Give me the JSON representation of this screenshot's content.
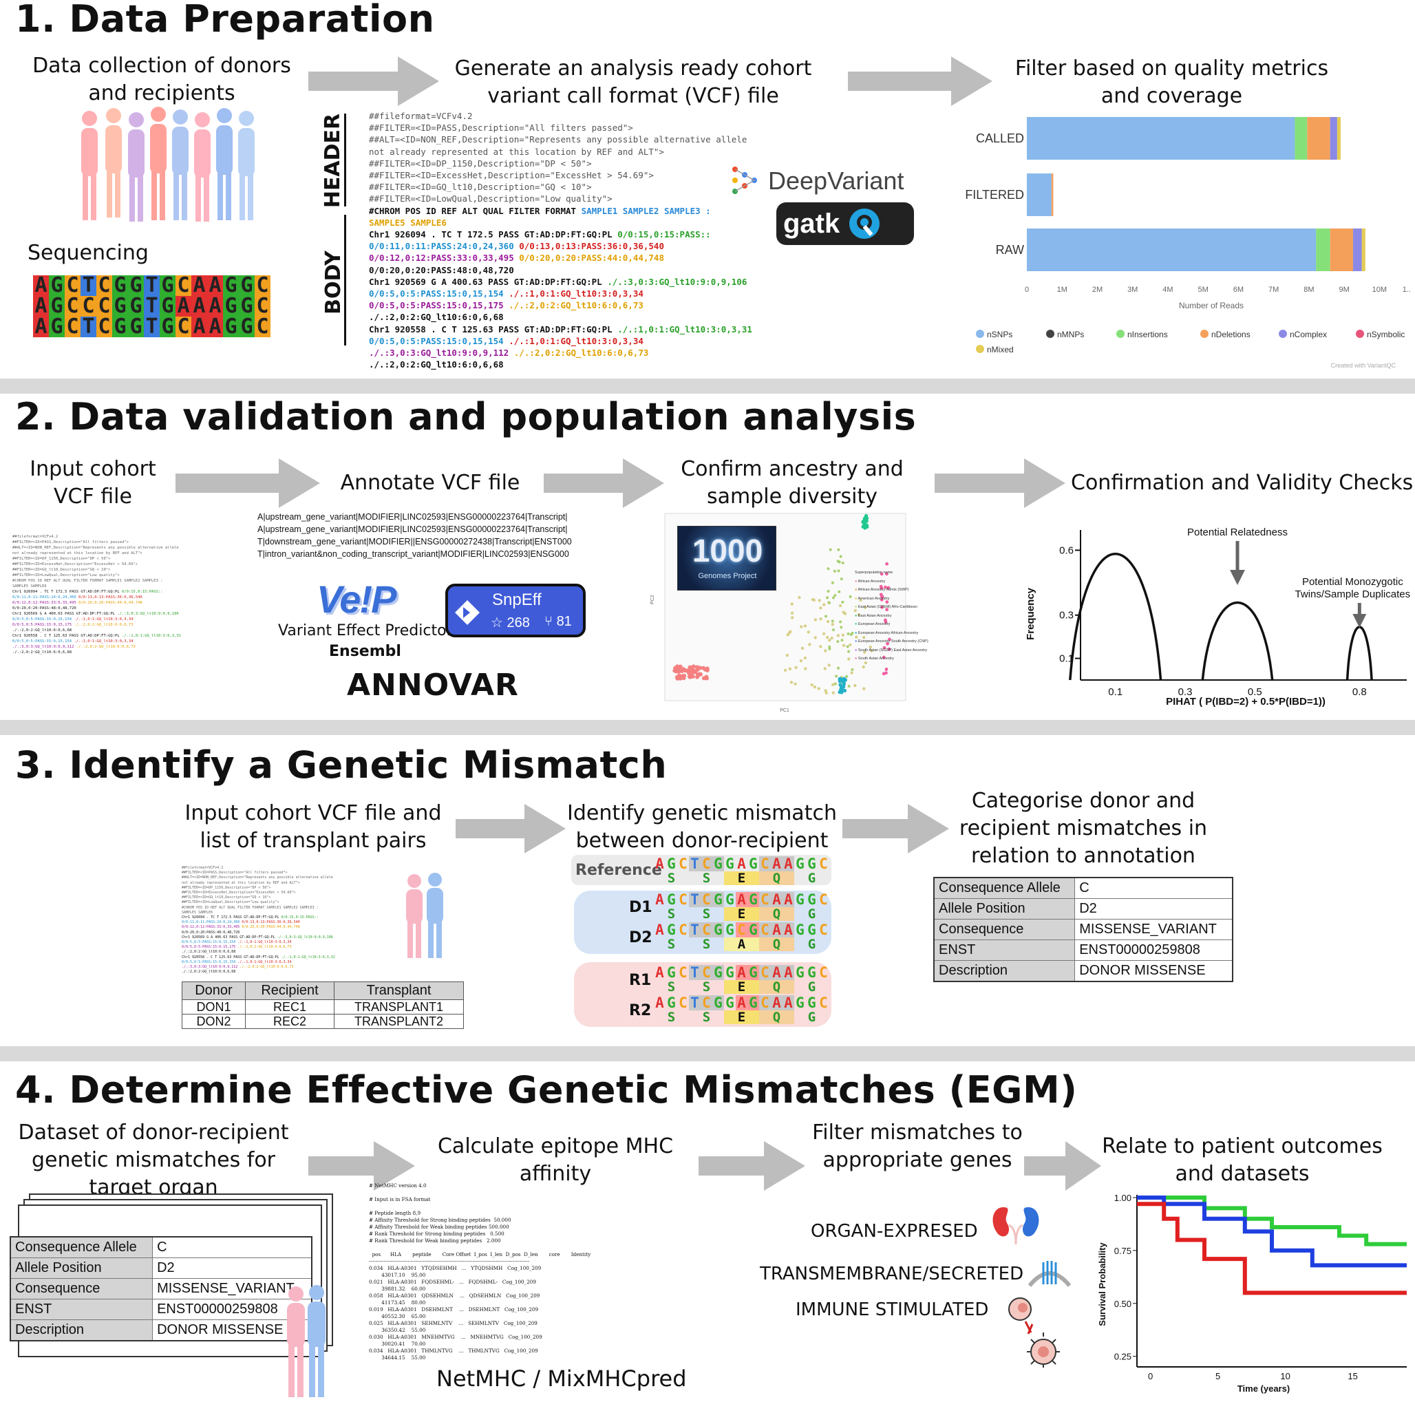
{
  "sections": {
    "s1": {
      "title": "1. Data Preparation",
      "cap_collect": "Data collection of donors and recipients",
      "cap_sequencing": "Sequencing",
      "cap_generate": "Generate an analysis ready cohort variant call format (VCF) file",
      "cap_filter": "Filter based on quality metrics and coverage",
      "label_header": "HEADER",
      "label_body": "BODY",
      "dna_lines": [
        "AGCTCGGTGCAAGGC",
        "AGCCCGGTGAAAGGC",
        "AGCTCGGTGCAAGGC"
      ],
      "vcf_header_lines": [
        "##fileformat=VCFv4.2",
        "##FILTER=<ID=PASS,Description=\"All filters passed\">",
        "##ALT=<ID=NON_REF,Description=\"Represents any possible alternative allele",
        "not already represented at this location by REF and ALT\">",
        "##FILTER=<ID=DP_1150,Description=\"DP < 50\">",
        "##FILTER=<ID=ExcessHet,Description=\"ExcessHet > 54.69\">",
        "##FILTER=<ID=GQ_lt10,Description=\"GQ < 10\">",
        "##FILTER=<ID=LowQual,Description=\"Low quality\">"
      ],
      "vcf_chrom_line": "#CHROM POS ID REF ALT QUAL FILTER FORMAT",
      "vcf_samples": "SAMPLE1 SAMPLE2 SAMPLE3 :",
      "vcf_samples2": "SAMPLE5 SAMPLE6",
      "vcf_body": [
        {
          "t": "Chr1 926094 . TC T 172.5 PASS GT:AD:DP:FT:GQ:PL",
          "c": "#111",
          "x": "0/0:15,0:15:PASS::",
          "xc": "#2aa02a"
        },
        {
          "t": "0/0:11,0:11:PASS:24:0,24,360",
          "c": "#1e90d0",
          "x": "0/0:13,0:13:PASS:36:0,36,540",
          "xc": "#d42020"
        },
        {
          "t": "0/0:12,0:12:PASS:33:0,33,495",
          "c": "#9a1a9a",
          "x": "0/0:20,0:20:PASS:44:0,44,748",
          "xc": "#e0a000"
        },
        {
          "t": "0/0:20,0:20:PASS:48:0,48,720",
          "c": "#111",
          "x": "",
          "xc": "#111"
        },
        {
          "t": "Chr1 920569 G A 400.63 PASS GT:AD:DP:FT:GQ:PL",
          "c": "#111",
          "x": "./.:3,0:3:GQ_lt10:9:0,9,106",
          "xc": "#2aa02a"
        },
        {
          "t": "0/0:5,0:5:PASS:15:0,15,154",
          "c": "#1e90d0",
          "x": "./.:1,0:1:GQ_lt10:3:0,3,34",
          "xc": "#d42020"
        },
        {
          "t": "0/0:5,0:5:PASS:15:0,15,175",
          "c": "#9a1a9a",
          "x": "./.:2,0:2:GQ_lt10:6:0,6,73",
          "xc": "#e0a000"
        },
        {
          "t": "./.:2,0:2:GQ_lt10:6:0,6,68",
          "c": "#111",
          "x": "",
          "xc": "#111"
        },
        {
          "t": "Chr1 920558 . C T 125.63 PASS GT:AD:DP:FT:GQ:PL",
          "c": "#111",
          "x": "./.:1,0:1:GQ_lt10:3:0,3,31",
          "xc": "#2aa02a"
        },
        {
          "t": "0/0:5,0:5:PASS:15:0,15,154",
          "c": "#1e90d0",
          "x": "./.:1,0:1:GQ_lt10:3:0,3,34",
          "xc": "#d42020"
        },
        {
          "t": "./.:3,0:3:GQ_lt10:9:0,9,112",
          "c": "#9a1a9a",
          "x": "./.:2,0:2:GQ_lt10:6:0,6,73",
          "xc": "#e0a000"
        },
        {
          "t": "./.:2,0:2:GQ_lt10:6:0,6,68",
          "c": "#111",
          "x": "",
          "xc": "#111"
        }
      ],
      "logo_deepvariant": "DeepVariant",
      "logo_gatk": "gatk",
      "bar_chart": {
        "xlabel": "Number of Reads",
        "ticks": [
          "0",
          "1M",
          "2M",
          "3M",
          "4M",
          "5M",
          "6M",
          "7M",
          "8M",
          "9M",
          "10M",
          "1..."
        ],
        "footer": "Created with VariantQC",
        "legend": [
          "nSNPs",
          "nMNPs",
          "nInsertions",
          "nDeletions",
          "nComplex",
          "nSymbolic",
          "nMixed"
        ]
      }
    },
    "s2": {
      "title": "2. Data validation and population analysis",
      "cap_input": "Input cohort VCF file",
      "cap_annotate": "Annotate VCF file",
      "cap_confirm": "Confirm ancestry and sample diversity",
      "cap_checks": "Confirmation and Validity Checks",
      "annot_lines": [
        "A|upstream_gene_variant|MODIFIER|LINC02593|ENSG00000223764|Transcript|",
        "A|upstream_gene_variant|MODIFIER|LINC02593|ENSG00000223764|Transcript|",
        "T|downstream_gene_variant|MODIFIER||ENSG00000272438|Transcript|ENST000",
        "T|intron_variant&non_coding_transcript_variant|MODIFIER|LINC02593|ENSG000"
      ],
      "vep_logo": "Ve!P",
      "vep_name": "Variant Effect Predictor",
      "ensembl": "Ensembl",
      "annovar": "ANNOVAR",
      "snpeff": {
        "name": "SnpEff",
        "stars": "268",
        "forks": "81"
      },
      "kg_logo": "1000",
      "kg_sub": "Genomes Project",
      "pca": {
        "xlabel": "PC1",
        "ylabel": "PC2",
        "legend_title": "Superpopulation name",
        "legend": [
          "African Ancestry",
          "African Ancestry Admix (SWP)",
          "American Ancestry",
          "East Asian (CDEM) Afro-Caribbean",
          "East Asian Ancestry",
          "European Ancestry",
          "European Ancestry African Ancestry",
          "European Ancestry South Ancestry (CNP)",
          "South Asian (SGDP) East Asian Ancestry",
          "South Asian Ancestry"
        ]
      },
      "pihat": {
        "xlabel": "PIHAT ( P(IBD=2) + 0.5*P(IBD=1))",
        "ylabel": "Frequency",
        "yticks": [
          "0.6",
          "0.3",
          "0.1"
        ],
        "xticks": [
          "0.1",
          "0.3",
          "0.5",
          "0.8"
        ],
        "annot1": "Potential Relatedness",
        "annot2a": "Potential Monozygotic",
        "annot2b": "Twins/Sample Duplicates"
      }
    },
    "s3": {
      "title": "3. Identify a Genetic Mismatch",
      "cap_input": "Input cohort VCF file and list of transplant pairs",
      "cap_identify": "Identify genetic mismatch between donor-recipient",
      "cap_categorise": "Categorise donor and recipient mismatches in relation to annotation",
      "pairs_headers": [
        "Donor",
        "Recipient",
        "Transplant"
      ],
      "pairs_rows": [
        [
          "DON1",
          "REC1",
          "TRANSPLANT1"
        ],
        [
          "DON2",
          "REC2",
          "TRANSPLANT2"
        ]
      ],
      "reference_label": "Reference",
      "rows": [
        {
          "label": "D1",
          "seq": "AGCTCGGAGCAAGGC"
        },
        {
          "label": "D2",
          "seq": "AGCTCGGCGCAAGGC"
        },
        {
          "label": "R1",
          "seq": "AGCTCGGAGCAAGGC"
        },
        {
          "label": "R2",
          "seq": "AGCTCGGAGCAAGGC"
        }
      ],
      "ref_seq": "AGCTCGGAGCAAGGC",
      "aa_ref": [
        "S",
        "S",
        "E",
        "Q",
        "G"
      ],
      "aa_mut": [
        "S",
        "S",
        "A",
        "Q",
        "G"
      ],
      "annotation": [
        [
          "Consequence Allele",
          "C"
        ],
        [
          "Allele Position",
          "D2"
        ],
        [
          "Consequence",
          "MISSENSE_VARIANT"
        ],
        [
          "ENST",
          "ENST00000259808"
        ],
        [
          "Description",
          "DONOR MISSENSE"
        ]
      ]
    },
    "s4": {
      "title": "4. Determine Effective Genetic Mismatches (EGM)",
      "cap_dataset": "Dataset of donor-recipient genetic mismatches for target organ",
      "cap_calculate": "Calculate epitope MHC affinity",
      "cap_filter": "Filter mismatches to appropriate genes",
      "cap_relate": "Relate to patient outcomes and datasets",
      "netmhc_label": "NetMHC / MixMHCpred",
      "netmhc_head": [
        "# NetMHC version 4.0",
        "",
        "# Input is in FSA format",
        "",
        "# Peptide length 8,9",
        "# Affinity Threshold for Strong binding peptides  50.000",
        "# Affinity Threshold for Weak binding peptides 500.000",
        "# Rank Threshold for Strong binding peptides   0.500",
        "# Rank Threshold for Weak binding peptides   2.000"
      ],
      "netmhc_cols": "  pos      HLA       peptide       Core Offset  I_pos  I_len  D_pos  D_len       core       Identity",
      "netmhc_rows": [
        "0.034   HLA-A0301   YTQDSEHMH   ...   YTQDSHMH   Cog_100_209",
        "        43017.10    95.00",
        "0.021   HLA-A0301   FQDSEHML-   ...   FQDSHML-   Cog_100_209",
        "        39881.32    60.00",
        "0.058   HLA-A0301   QDSEHMLN    ...   QDSEHMLN   Cog_100_209",
        "        41173.45    80.00",
        "0.019   HLA-A0301   DSEHMLNT    ...   DSEHMLNT   Cog_100_209",
        "        40552.30    65.00",
        "0.025   HLA-A0301   SEHMLNTV    ...   SEHMLNTV   Cog_100_209",
        "        36350.42    55.00",
        "0.030   HLA-A0301   MNEHMTVG    ...   MNEHMTVG   Cog_100_209",
        "        30020.41    70.00",
        "0.034   HLA-A0301   THMLNTVG    ...   THMLNTVG   Cog_100_209",
        "        34644.15    55.00"
      ],
      "organ": "ORGAN-EXPRESED",
      "transmembrane": "TRANSMEMBRANE/SECRETED",
      "immune": "IMMUNE  STIMULATED",
      "km": {
        "xlabel": "Time (years)",
        "ylabel": "Survival Probability",
        "yticks": [
          "1.00",
          "0.75",
          "0.50",
          "0.25"
        ],
        "xticks": [
          "0",
          "5",
          "10",
          "15"
        ]
      }
    }
  },
  "colors": {
    "A": "#e23030",
    "G": "#2fae2f",
    "C": "#f2a020",
    "T": "#3a7bdc",
    "divider": "#d9d9d9",
    "arrow": "#bdbdbd"
  },
  "chart_data": [
    {
      "type": "bar",
      "orientation": "horizontal",
      "categories": [
        "CALLED",
        "FILTERED",
        "RAW"
      ],
      "xlabel": "Number of Reads",
      "xlim": [
        0,
        10500000
      ],
      "series": [
        {
          "name": "nSNPs",
          "color": "#88b8ec",
          "values": [
            7600000,
            700000,
            8200000
          ]
        },
        {
          "name": "nMNPs",
          "color": "#444444",
          "values": [
            0,
            0,
            0
          ]
        },
        {
          "name": "nInsertions",
          "color": "#86e07a",
          "values": [
            350000,
            0,
            400000
          ]
        },
        {
          "name": "nDeletions",
          "color": "#f5a05a",
          "values": [
            650000,
            50000,
            650000
          ]
        },
        {
          "name": "nComplex",
          "color": "#8a8ae6",
          "values": [
            200000,
            0,
            250000
          ]
        },
        {
          "name": "nSymbolic",
          "color": "#e8547a",
          "values": [
            0,
            0,
            0
          ]
        },
        {
          "name": "nMixed",
          "color": "#e5cc55",
          "values": [
            100000,
            0,
            100000
          ]
        }
      ]
    },
    {
      "type": "area",
      "xlabel": "PIHAT ( P(IBD=2) + 0.5*P(IBD=1))",
      "ylabel": "Frequency",
      "x": [
        0.1,
        0.45,
        0.8
      ],
      "y": [
        0.65,
        0.35,
        0.2
      ]
    },
    {
      "type": "line",
      "xlabel": "Time (years)",
      "ylabel": "Survival Probability",
      "ylim": [
        0.25,
        1.0
      ],
      "series": [
        {
          "color": "#2fcc3a",
          "x": [
            0,
            5,
            8,
            10,
            15,
            17,
            20
          ],
          "y": [
            1.0,
            0.95,
            0.9,
            0.86,
            0.82,
            0.78,
            0.78
          ]
        },
        {
          "color": "#1e3fe0",
          "x": [
            0,
            2,
            5,
            8,
            10,
            13,
            20
          ],
          "y": [
            1.0,
            0.97,
            0.9,
            0.84,
            0.75,
            0.68,
            0.68
          ]
        },
        {
          "color": "#e02020",
          "x": [
            0,
            2,
            3,
            5,
            8,
            20
          ],
          "y": [
            0.97,
            0.9,
            0.8,
            0.71,
            0.55,
            0.55
          ]
        }
      ]
    }
  ]
}
